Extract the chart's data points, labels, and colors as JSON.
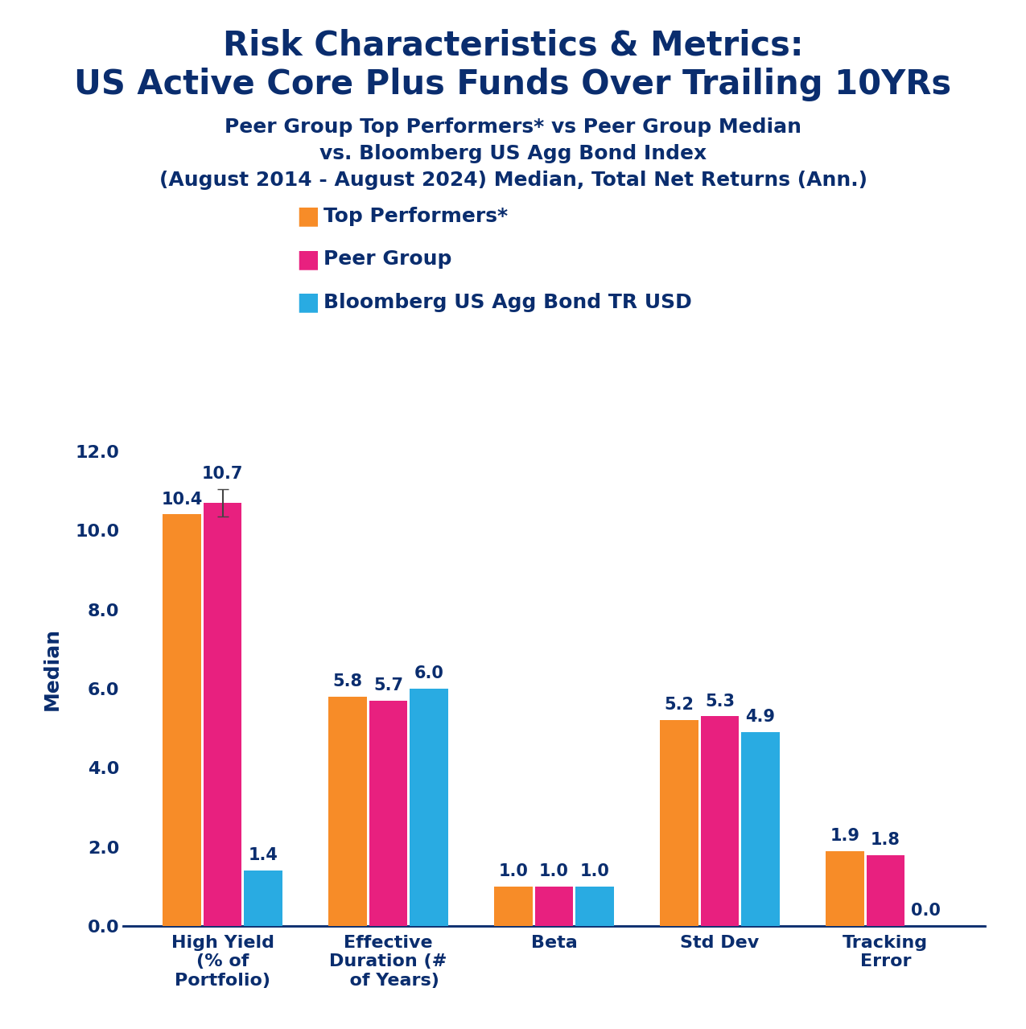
{
  "title_line1": "Risk Characteristics & Metrics:",
  "title_line2": "US Active Core Plus Funds Over Trailing 10YRs",
  "subtitle_line1": "Peer Group Top Performers* vs Peer Group Median",
  "subtitle_line2": "vs. Bloomberg US Agg Bond Index",
  "subtitle_line3": "(August 2014 - August 2024) Median, Total Net Returns (Ann.)",
  "legend_labels": [
    "Top Performers*",
    "Peer Group",
    "Bloomberg US Agg Bond TR USD"
  ],
  "legend_colors": [
    "#F78C28",
    "#E8207F",
    "#29ABE2"
  ],
  "categories": [
    "High Yield\n(% of\nPortfolio)",
    "Effective\nDuration (#\n  of Years)",
    "Beta",
    "Std Dev",
    "Tracking\nError"
  ],
  "top_performers": [
    10.4,
    5.8,
    1.0,
    5.2,
    1.9
  ],
  "peer_group": [
    10.7,
    5.7,
    1.0,
    5.3,
    1.8
  ],
  "bloomberg": [
    1.4,
    6.0,
    1.0,
    4.9,
    0.0
  ],
  "bar_colors": [
    "#F78C28",
    "#E8207F",
    "#29ABE2"
  ],
  "title_color": "#0A2D6E",
  "ylabel": "Median",
  "ylim": [
    0,
    13.0
  ],
  "yticks": [
    0.0,
    2.0,
    4.0,
    6.0,
    8.0,
    10.0,
    12.0
  ],
  "background_color": "#FFFFFF",
  "error_bar_category": 0,
  "error_bar_series": 1,
  "error_bar_value": 0.35
}
